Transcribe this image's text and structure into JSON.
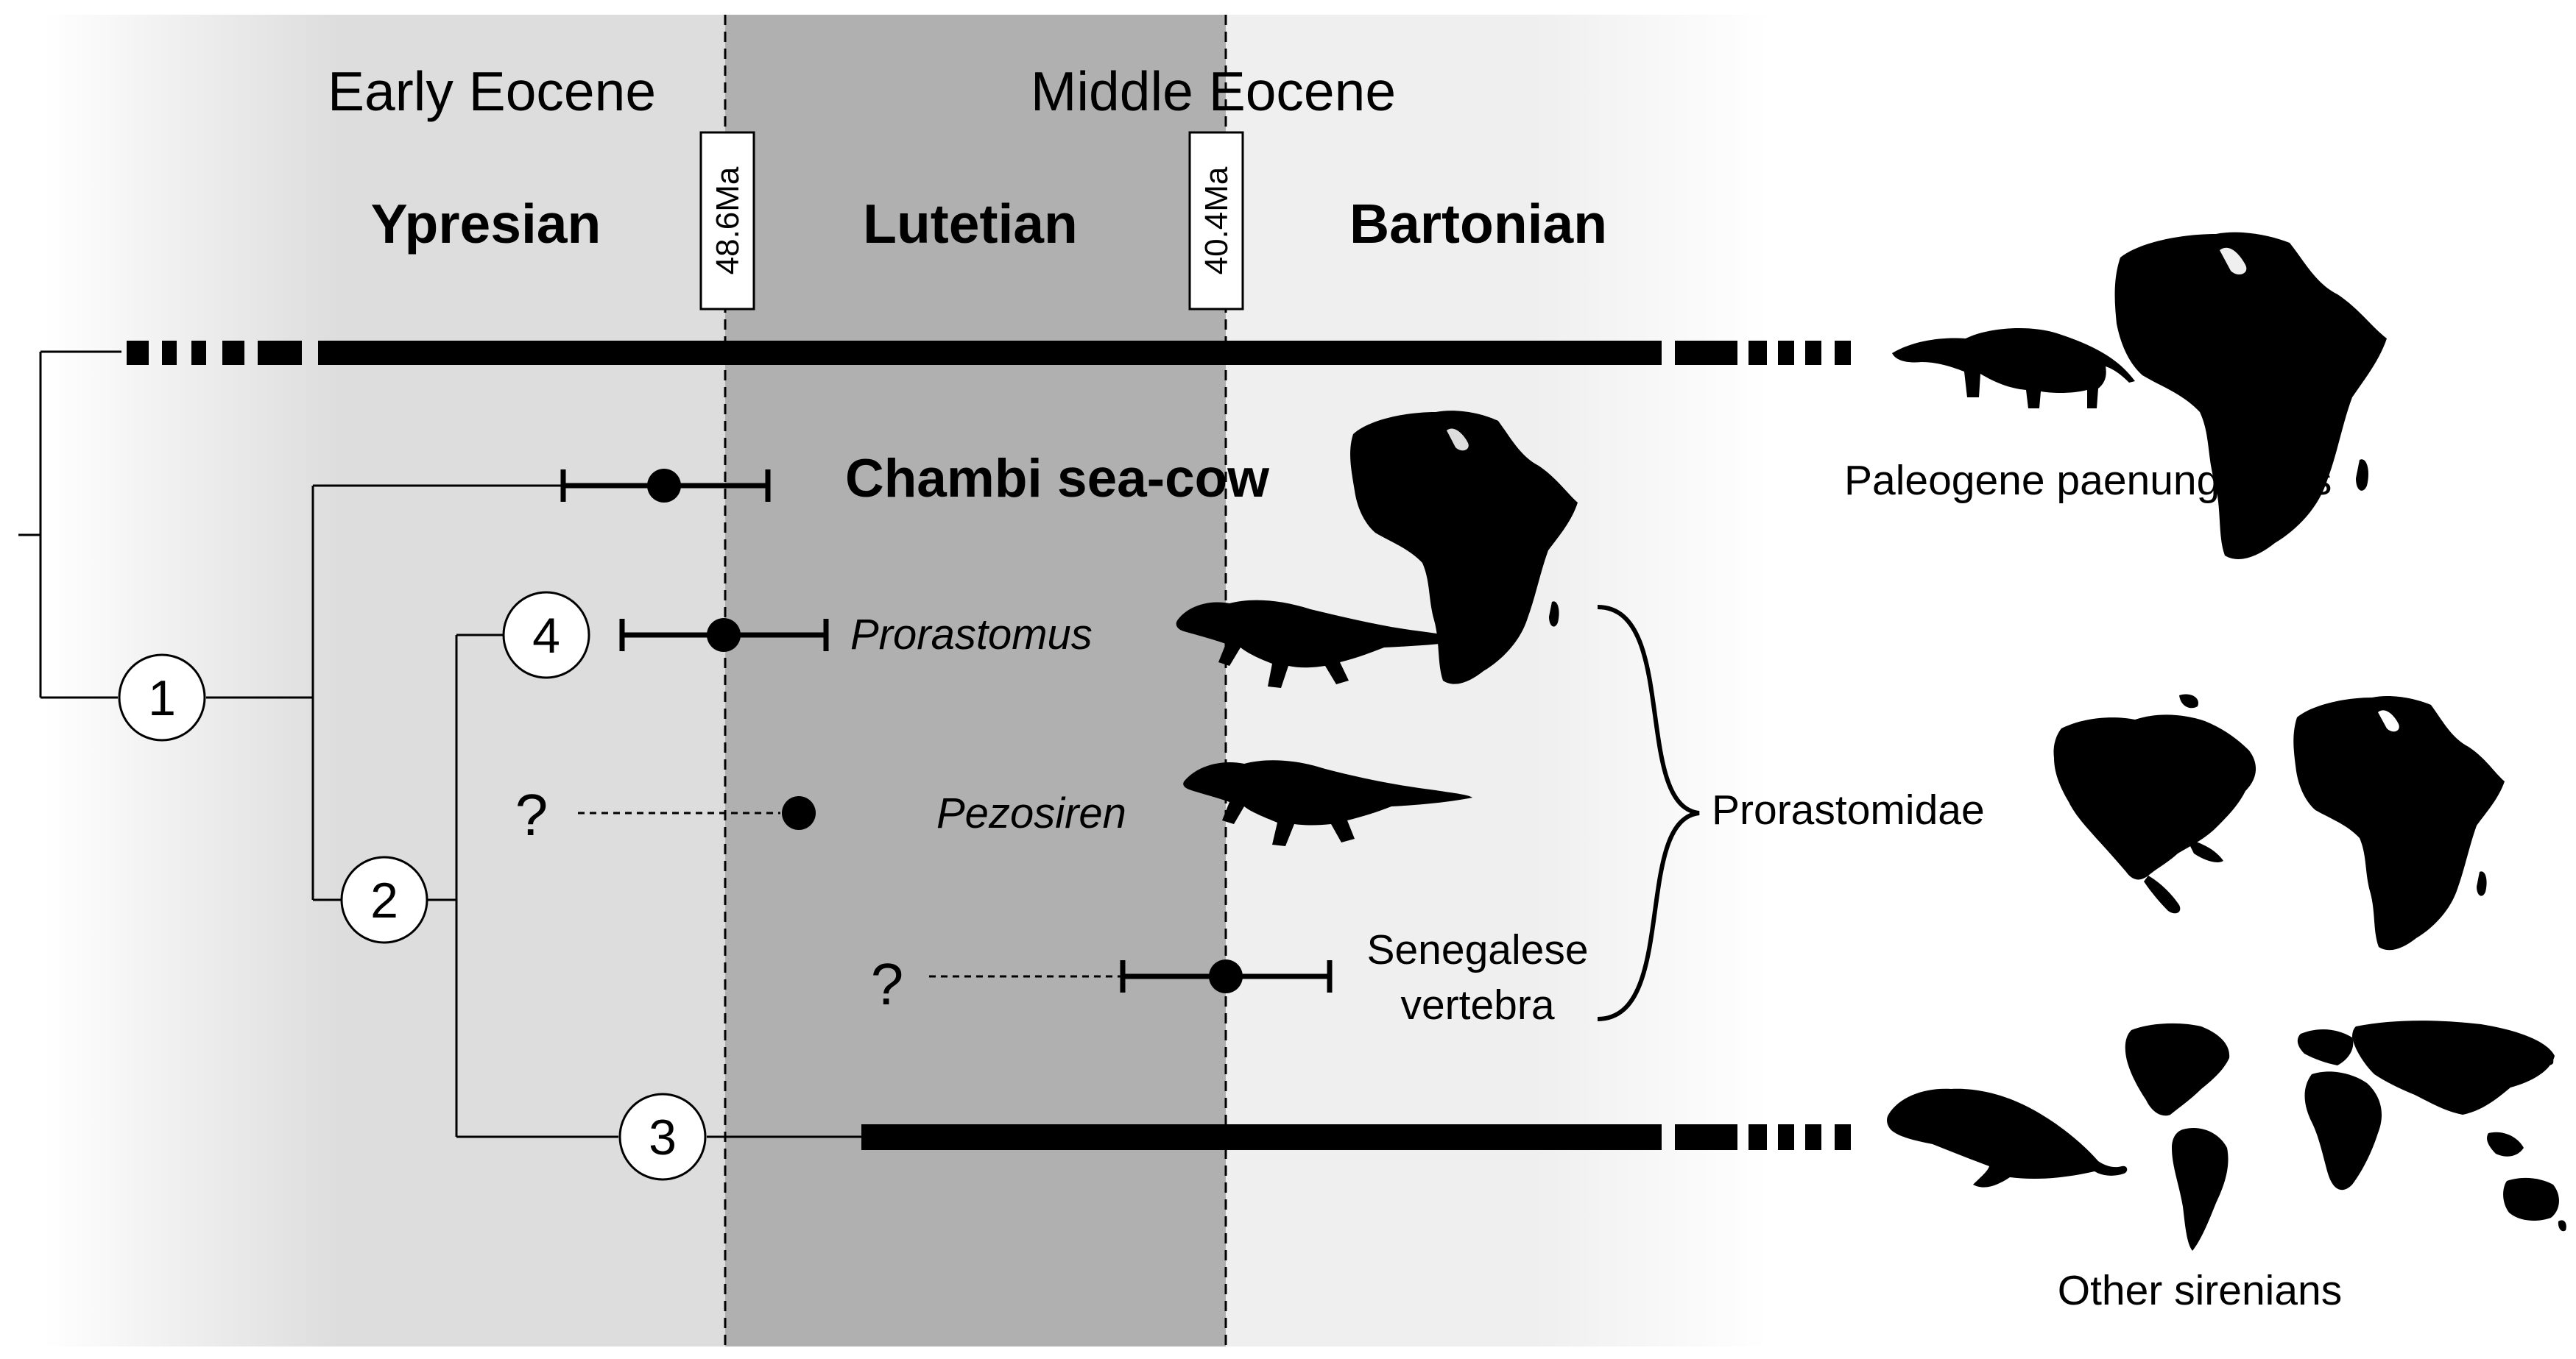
{
  "colors": {
    "early_band": "#dddddd",
    "middle_band": "#b0b0b0",
    "late_band": "#efefef",
    "ink": "#000000",
    "paper": "#ffffff"
  },
  "epochs": {
    "early": "Early Eocene",
    "middle": "Middle Eocene"
  },
  "stages": {
    "ypresian": "Ypresian",
    "lutetian": "Lutetian",
    "bartonian": "Bartonian"
  },
  "boundaries": {
    "first": "48.6Ma",
    "second": "40.4Ma"
  },
  "nodes": {
    "n1": "1",
    "n2": "2",
    "n3": "3",
    "n4": "4"
  },
  "taxa": {
    "chambi": "Chambi sea-cow",
    "prorastomus": "Prorastomus",
    "pezosiren": "Pezosiren",
    "senegalese_line1": "Senegalese",
    "senegalese_line2": "vertebra"
  },
  "uncertain_marks": {
    "pezosiren": "?",
    "senegalese": "?"
  },
  "groups": {
    "paenungulates": "Paleogene paenungulates",
    "prorastomidae": "Prorastomidae",
    "other_sirenians": "Other sirenians"
  },
  "icons": [
    "hyrax-silhouette-icon",
    "africa-map-icon",
    "prorastomid-silhouette-icon",
    "north-america-map-icon",
    "sirenian-silhouette-icon",
    "world-map-icon"
  ]
}
